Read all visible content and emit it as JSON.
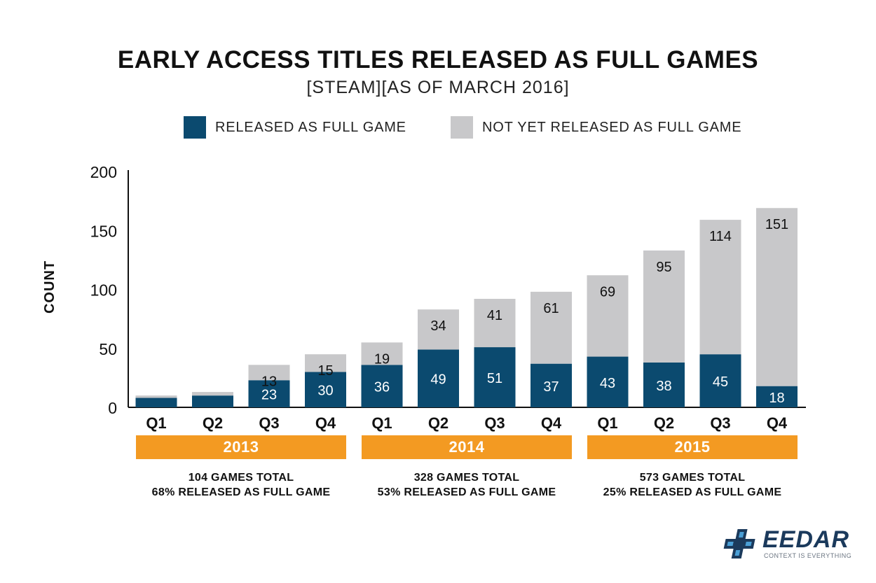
{
  "chart_data": {
    "type": "bar",
    "stacked": true,
    "title": "EARLY ACCESS TITLES RELEASED AS FULL GAMES",
    "subtitle": "[STEAM][AS OF MARCH 2016]",
    "ylabel": "COUNT",
    "ylim": [
      0,
      200
    ],
    "yticks": [
      "0",
      "50",
      "100",
      "150",
      "200"
    ],
    "categories": [
      "Q1",
      "Q2",
      "Q3",
      "Q4",
      "Q1",
      "Q2",
      "Q3",
      "Q4",
      "Q1",
      "Q2",
      "Q3",
      "Q4"
    ],
    "legend_position": "top",
    "series": [
      {
        "name": "RELEASED AS FULL GAME",
        "color": "#0b4a6f",
        "values": [
          8,
          10,
          23,
          30,
          36,
          49,
          51,
          37,
          43,
          38,
          45,
          18
        ],
        "labels": [
          "",
          "",
          "23",
          "30",
          "36",
          "49",
          "51",
          "37",
          "43",
          "38",
          "45",
          "18"
        ]
      },
      {
        "name": "NOT YET RELEASED AS FULL GAME",
        "color": "#c8c8ca",
        "values": [
          2,
          3,
          13,
          15,
          19,
          34,
          41,
          61,
          69,
          95,
          114,
          151
        ],
        "labels": [
          "",
          "",
          "13",
          "15",
          "19",
          "34",
          "41",
          "61",
          "69",
          "95",
          "114",
          "151"
        ]
      }
    ],
    "year_groups": [
      {
        "year": "2013",
        "line1": "104 GAMES TOTAL",
        "line2": "68% RELEASED AS FULL GAME"
      },
      {
        "year": "2014",
        "line1": "328 GAMES TOTAL",
        "line2": "53% RELEASED AS FULL GAME"
      },
      {
        "year": "2015",
        "line1": "573 GAMES TOTAL",
        "line2": "25% RELEASED AS FULL GAME"
      }
    ],
    "group_color": "#f39a22"
  },
  "logo": {
    "name": "EEDAR",
    "tagline": "CONTEXT IS EVERYTHING",
    "icon": "dpad-cross-logo-icon"
  }
}
